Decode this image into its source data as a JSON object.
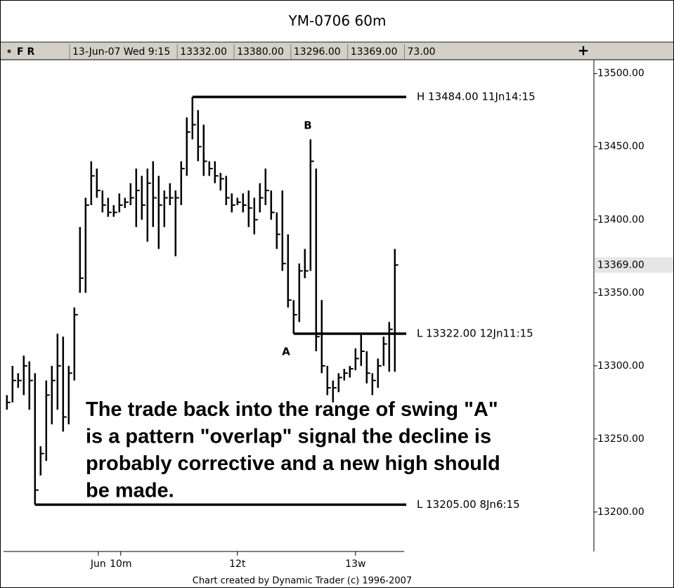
{
  "chart_data": {
    "type": "ohlc",
    "title": "YM-0706 60m",
    "info": [
      "F R",
      "13-Jun-07 Wed 9:15",
      "13332.00",
      "13380.00",
      "13296.00",
      "13369.00",
      "73.00"
    ],
    "series": [
      {
        "color": "#000000",
        "high": [
          13280,
          13300,
          13295,
          13307,
          13303,
          13295,
          13245,
          13290,
          13300,
          13322,
          13320,
          13300,
          13340,
          13395,
          13415,
          13440,
          13435,
          13420,
          13415,
          13410,
          13418,
          13415,
          13425,
          13435,
          13430,
          13435,
          13440,
          13430,
          13420,
          13425,
          13420,
          13440,
          13470,
          13484,
          13475,
          13465,
          13440,
          13440,
          13432,
          13430,
          13418,
          13415,
          13418,
          13420,
          13415,
          13425,
          13435,
          13420,
          13405,
          13420,
          13390,
          13345,
          13370,
          13380,
          13455,
          13435,
          13345,
          13300,
          13290,
          13295,
          13298,
          13300,
          13312,
          13322,
          13310,
          13295,
          13305,
          13320,
          13330,
          13380
        ],
        "low": [
          13270,
          13275,
          13285,
          13280,
          13270,
          13205,
          13225,
          13235,
          13260,
          13270,
          13255,
          13260,
          13290,
          13350,
          13350,
          13410,
          13415,
          13405,
          13402,
          13402,
          13405,
          13408,
          13410,
          13395,
          13400,
          13385,
          13395,
          13380,
          13395,
          13410,
          13375,
          13410,
          13430,
          13455,
          13440,
          13430,
          13430,
          13425,
          13420,
          13410,
          13405,
          13410,
          13405,
          13395,
          13390,
          13405,
          13410,
          13400,
          13380,
          13365,
          13340,
          13322,
          13330,
          13360,
          13365,
          13310,
          13295,
          13280,
          13275,
          13282,
          13290,
          13292,
          13297,
          13300,
          13288,
          13280,
          13285,
          13300,
          13296,
          13296
        ],
        "close": [
          13275,
          13290,
          13290,
          13300,
          13290,
          13215,
          13240,
          13280,
          13290,
          13300,
          13265,
          13295,
          13335,
          13360,
          13410,
          13430,
          13420,
          13410,
          13405,
          13405,
          13410,
          13412,
          13415,
          13420,
          13410,
          13425,
          13415,
          13410,
          13415,
          13415,
          13415,
          13435,
          13460,
          13465,
          13450,
          13440,
          13435,
          13430,
          13428,
          13415,
          13410,
          13412,
          13410,
          13408,
          13400,
          13415,
          13420,
          13405,
          13390,
          13370,
          13345,
          13335,
          13365,
          13365,
          13440,
          13320,
          13300,
          13285,
          13285,
          13292,
          13295,
          13298,
          13305,
          13310,
          13295,
          13290,
          13300,
          13315,
          13325,
          13369
        ]
      }
    ],
    "levels": [
      {
        "label": "H 13484.00 11Jn14:15",
        "value": 13484,
        "start": 33
      },
      {
        "label": "L 13322.00 12Jn11:15",
        "value": 13322,
        "start": 51
      },
      {
        "label": "L 13205.00 8Jn6:15",
        "value": 13205,
        "start": 5
      }
    ],
    "price_marker": {
      "value": 13369,
      "label": "13369.00"
    },
    "annotations": [
      "B",
      "A"
    ],
    "note_lines": [
      "The trade back into the range of swing \"A\"",
      "is a pattern \"overlap\" signal the decline is",
      "probably corrective and a new high should",
      "be made."
    ],
    "xlim": [
      -0.6,
      104.4
    ],
    "xticks": [
      {
        "value": 16.25,
        "label": "Jun"
      },
      {
        "value": 20.25,
        "label": "10m"
      },
      {
        "value": 41,
        "label": "12t"
      },
      {
        "value": 62,
        "label": "13w"
      }
    ],
    "ylim": [
      13173,
      13509
    ],
    "yticks": [
      {
        "value": 13200,
        "label": "13200.00"
      },
      {
        "value": 13250,
        "label": "13250.00"
      },
      {
        "value": 13300,
        "label": "13300.00"
      },
      {
        "value": 13350,
        "label": "13350.00"
      },
      {
        "value": 13400,
        "label": "13400.00"
      },
      {
        "value": 13450,
        "label": "13450.00"
      },
      {
        "value": 13500,
        "label": "13500.00"
      }
    ],
    "footer": "Chart created by Dynamic Trader  (c) 1996-2007"
  }
}
